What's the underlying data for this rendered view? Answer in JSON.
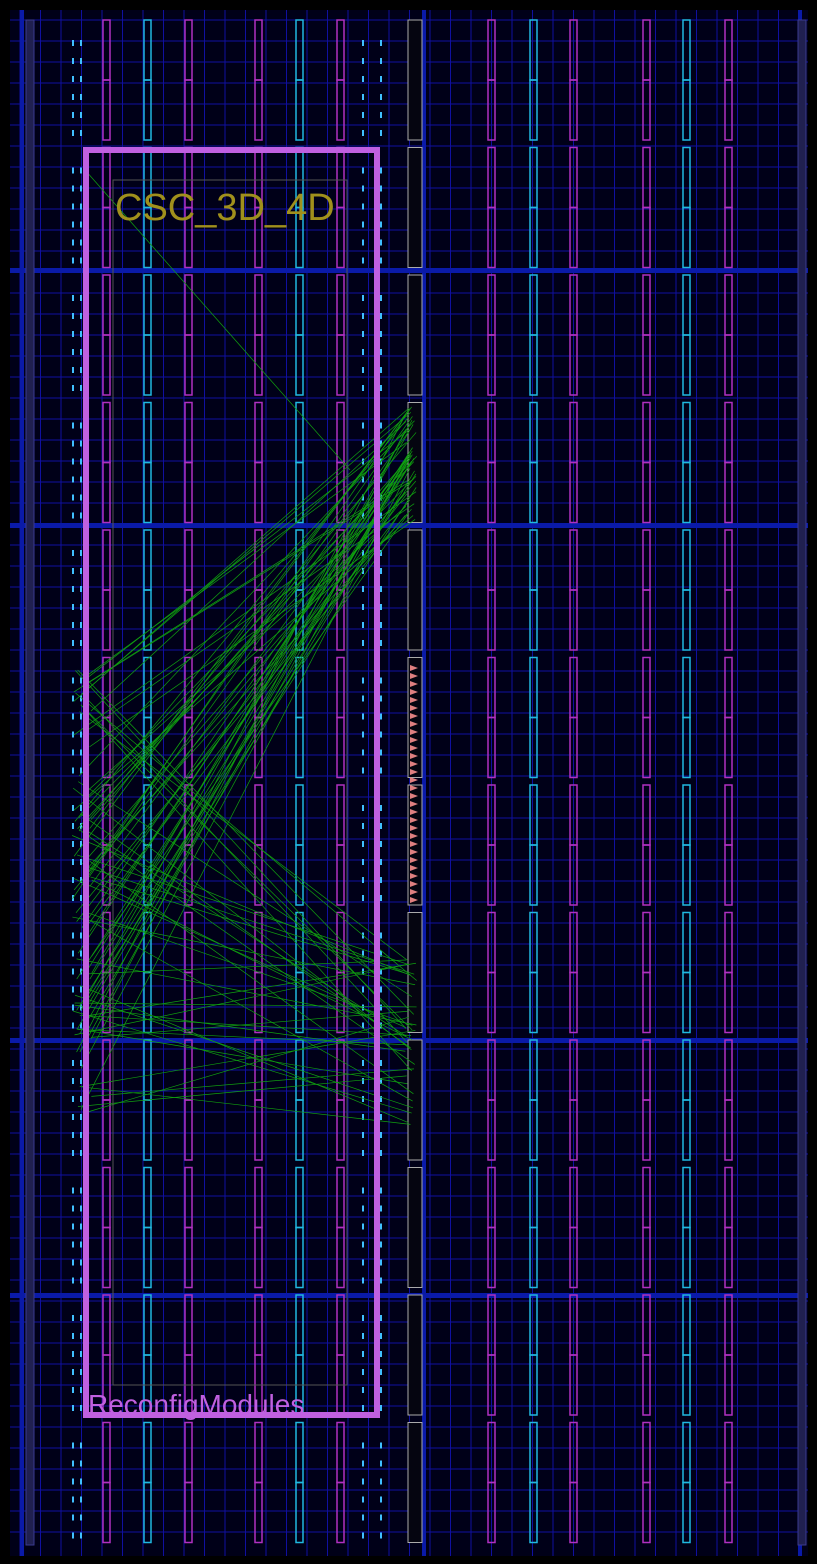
{
  "labels": {
    "module": "CSC_3D_4D",
    "pblock": "ReconfigModules"
  }
}
